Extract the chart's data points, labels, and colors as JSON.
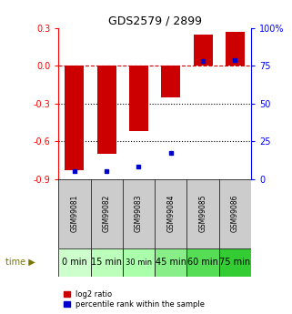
{
  "title": "GDS2579 / 2899",
  "samples": [
    "GSM99081",
    "GSM99082",
    "GSM99083",
    "GSM99084",
    "GSM99085",
    "GSM99086"
  ],
  "time_labels": [
    "0 min",
    "15 min",
    "30 min",
    "45 min",
    "60 min",
    "75 min"
  ],
  "log2_ratio": [
    -0.83,
    -0.7,
    -0.52,
    -0.25,
    0.25,
    0.27
  ],
  "percentile_rank": [
    5,
    5,
    8,
    17,
    78,
    79
  ],
  "ylim_left": [
    -0.9,
    0.3
  ],
  "ylim_right": [
    0,
    100
  ],
  "yticks_left": [
    0.3,
    0.0,
    -0.3,
    -0.6,
    -0.9
  ],
  "yticks_right": [
    100,
    75,
    50,
    25,
    0
  ],
  "bar_color": "#cc0000",
  "dot_color": "#0000cc",
  "dashed_line_color": "#cc0000",
  "dotted_line_color": "#000000",
  "cell_bg_gray": "#cccccc",
  "time_colors": [
    "#ccffcc",
    "#bbffbb",
    "#aaffaa",
    "#88ee88",
    "#55dd55",
    "#33cc33"
  ],
  "time_font_sizes": [
    7,
    7,
    6,
    7,
    7,
    7
  ],
  "legend_red_label": "log2 ratio",
  "legend_blue_label": "percentile rank within the sample",
  "time_arrow_color": "#777700",
  "fig_width": 3.21,
  "fig_height": 3.45
}
